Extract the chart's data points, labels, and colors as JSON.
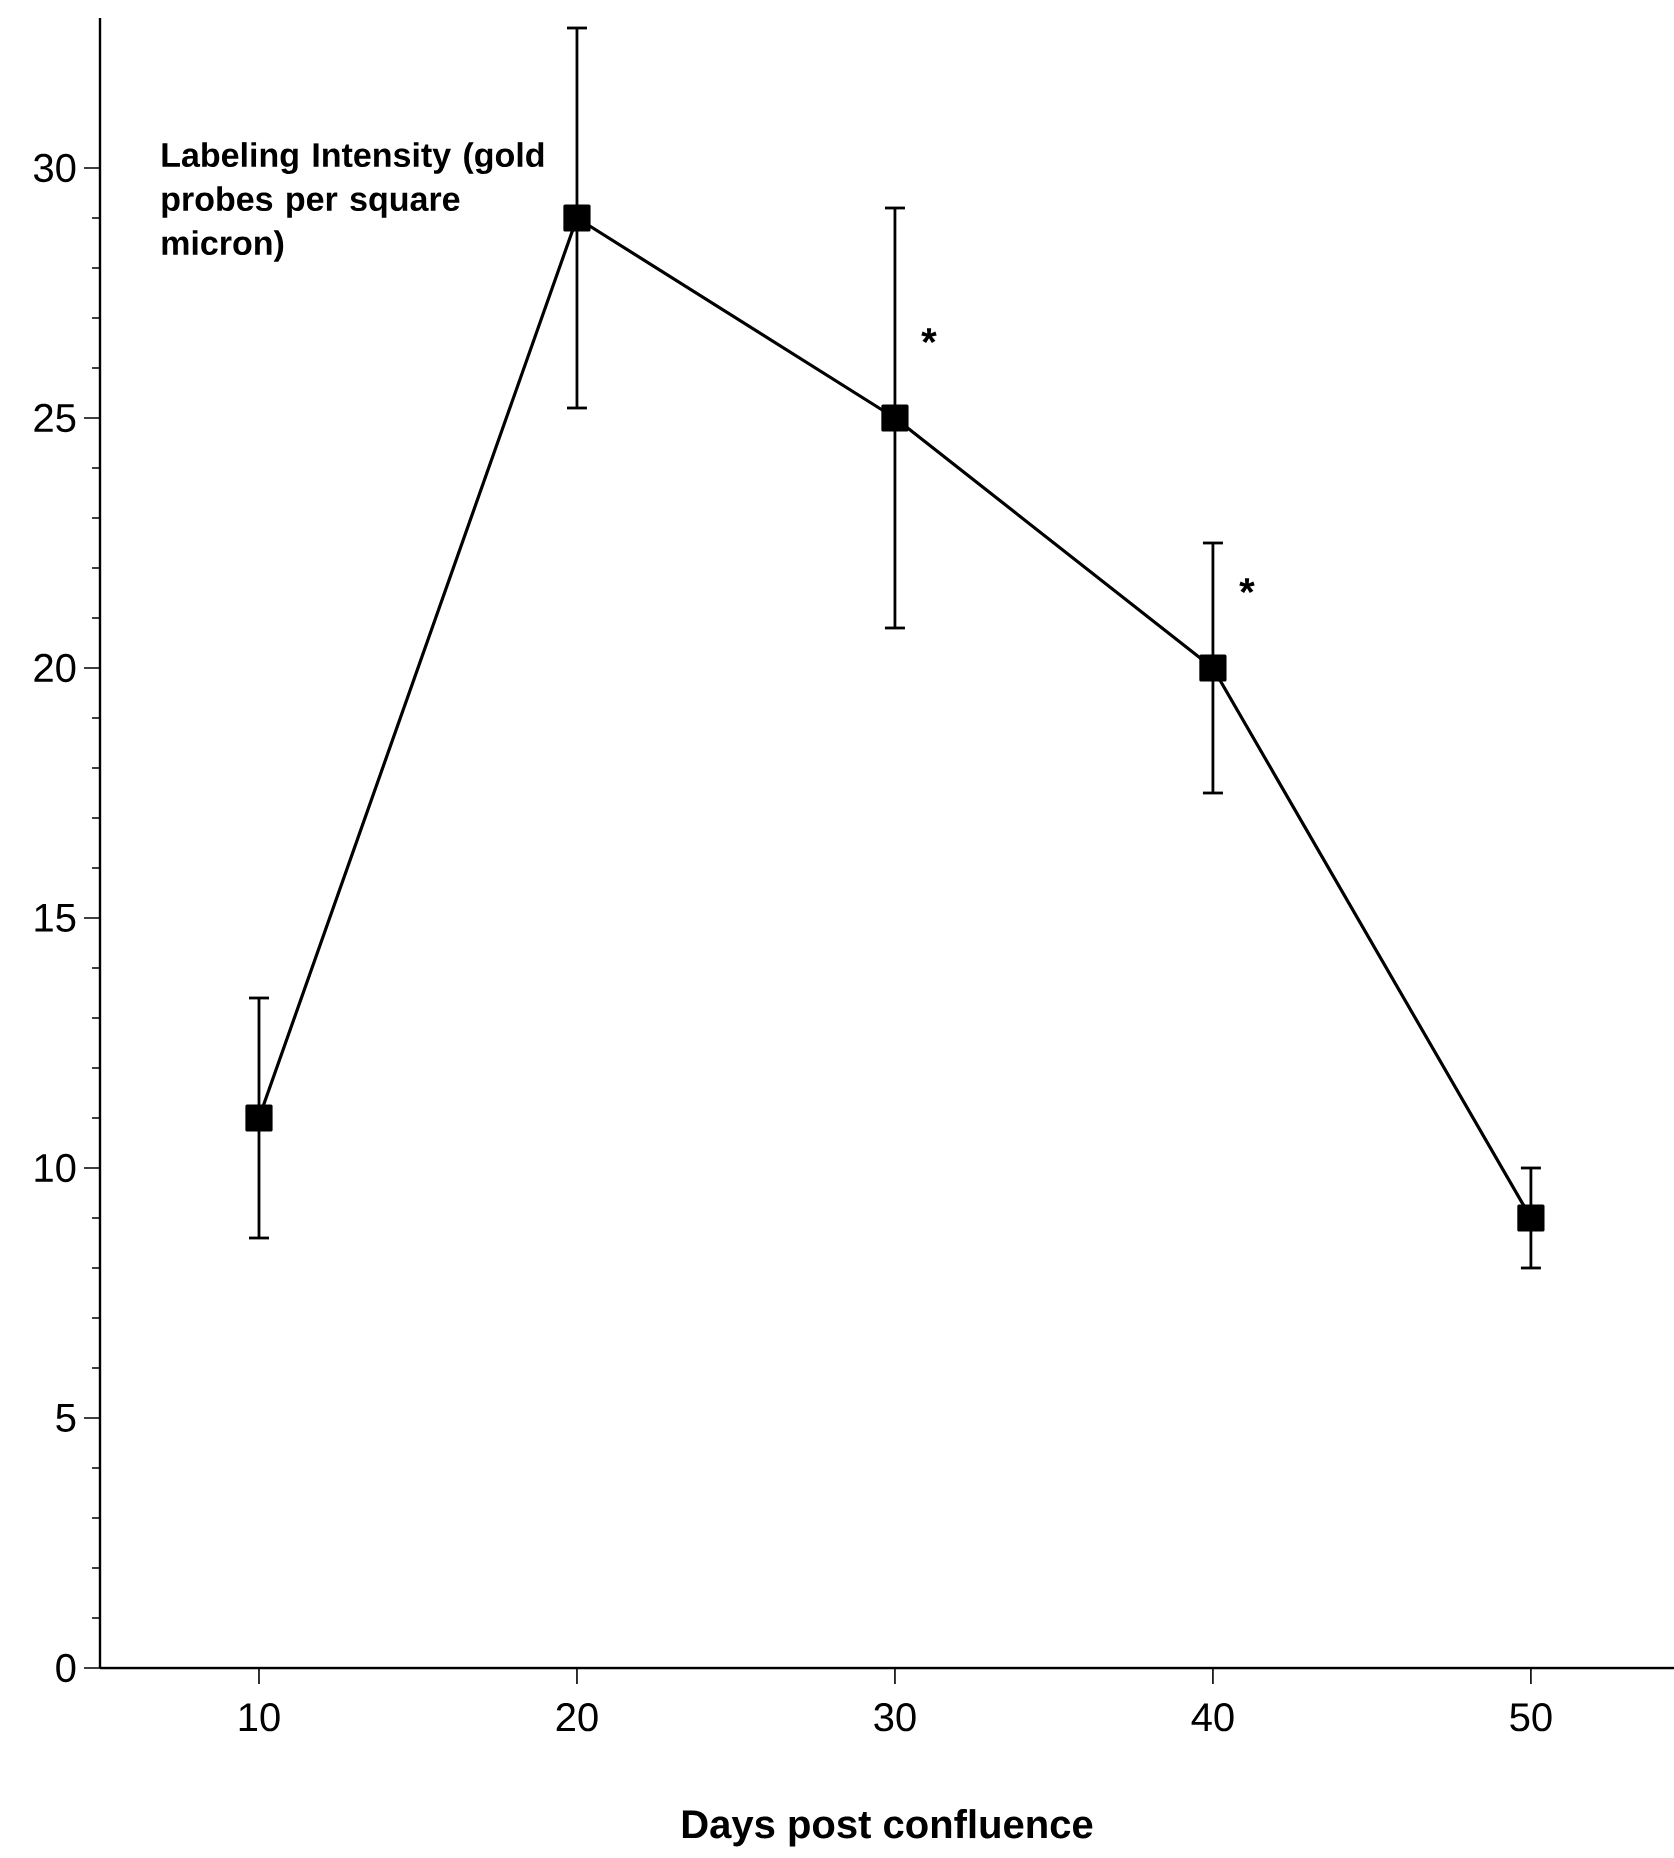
{
  "chart_data": {
    "type": "line",
    "xlabel": "Days post confluence",
    "ylabel": "Labeling Intensity (gold probes per square micron)",
    "x": [
      10,
      20,
      30,
      40,
      50
    ],
    "values": [
      11,
      29,
      25,
      20,
      9
    ],
    "errors": [
      2.4,
      3.8,
      4.2,
      2.5,
      1
    ],
    "color": "#000000",
    "marker": "square",
    "line_style": "solid",
    "xlim": [
      5,
      54.5
    ],
    "ylim": [
      0,
      33
    ],
    "xticks": [
      10,
      20,
      30,
      40,
      50
    ],
    "yticks": [
      0,
      5,
      10,
      15,
      20,
      25,
      30
    ],
    "annotations": [
      {
        "text": "*",
        "x": 30,
        "y": 25
      },
      {
        "text": "*",
        "x": 40,
        "y": 20
      }
    ]
  }
}
